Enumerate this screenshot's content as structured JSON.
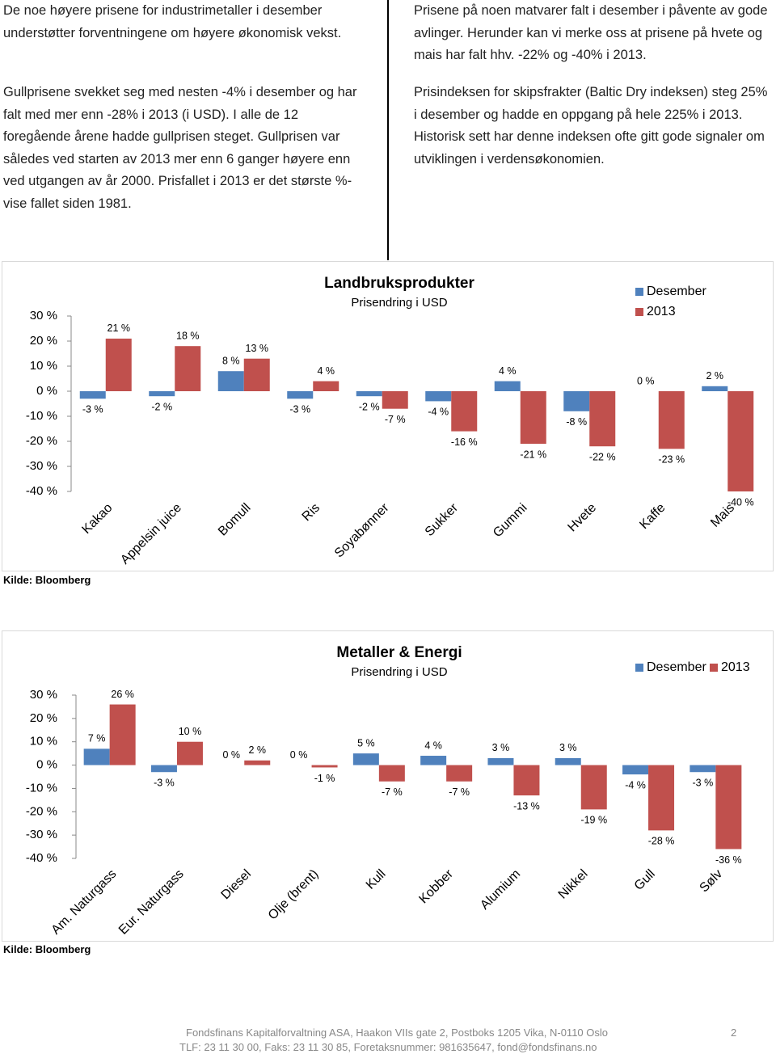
{
  "left_text": [
    "De noe høyere prisene for industrimetaller i desember understøtter forventningene om høyere økonomisk vekst.",
    "Gullprisene svekket seg med nesten -4% i desember  og har falt med mer enn -28% i 2013 (i USD). I alle de 12 foregående årene hadde gullprisen steget. Gullprisen var således ved starten av 2013 mer enn 6 ganger høyere enn ved utgangen av år 2000. Prisfallet i 2013 er det største %-vise fallet siden 1981."
  ],
  "right_text": [
    "Prisene på noen matvarer falt i desember i påvente av gode avlinger. Herunder kan vi merke oss at prisene på hvete og mais har falt hhv. -22% og -40%  i 2013.",
    "Prisindeksen for skipsfrakter (Baltic Dry indeksen) steg 25% i desember og hadde en oppgang på hele 225% i 2013. Historisk sett har denne indeksen ofte gitt gode signaler om utviklingen i verdensøkonomien."
  ],
  "chart_data": [
    {
      "type": "bar",
      "title": "Landbruksprodukter",
      "subtitle": "Prisendring i USD",
      "source": "Kilde: Bloomberg",
      "legend": "top-right",
      "legend_direction": "vertical",
      "categories": [
        "Kakao",
        "Appelsin juice",
        "Bomull",
        "Ris",
        "Soyabønner",
        "Sukker",
        "Gummi",
        "Hvete",
        "Kaffe",
        "Mais"
      ],
      "series": [
        {
          "name": "Desember",
          "color": "#4f81bd",
          "values": [
            -3,
            -2,
            8,
            -3,
            -2,
            -4,
            4,
            -8,
            0,
            2
          ],
          "value_labels": [
            "-3 %",
            "-2 %",
            "8 %",
            "-3 %",
            "-2 %",
            "-4 %",
            "4 %",
            "-8 %",
            "0 %",
            "2 %"
          ]
        },
        {
          "name": "2013",
          "color": "#c0504d",
          "values": [
            21,
            18,
            13,
            4,
            -7,
            -16,
            -21,
            -22,
            -23,
            -40
          ],
          "value_labels": [
            "21 %",
            "18 %",
            "13 %",
            "4 %",
            "-7 %",
            "-16 %",
            "-21 %",
            "-22 %",
            "-23 %",
            "-40 %"
          ]
        }
      ],
      "ylim": [
        -40,
        30
      ],
      "yticks": [
        {
          "value": -40,
          "label": "-40 %"
        },
        {
          "value": -30,
          "label": "-30 %"
        },
        {
          "value": -20,
          "label": "-20 %"
        },
        {
          "value": -10,
          "label": "-10 %"
        },
        {
          "value": 0,
          "label": "0 %"
        },
        {
          "value": 10,
          "label": "10 %"
        },
        {
          "value": 20,
          "label": "20 %"
        },
        {
          "value": 30,
          "label": "30 %"
        }
      ]
    },
    {
      "type": "bar",
      "title": "Metaller & Energi",
      "subtitle": "Prisendring i USD",
      "source": "Kilde: Bloomberg",
      "legend": "top-right",
      "legend_direction": "horizontal",
      "categories": [
        "Am. Naturgass",
        "Eur. Naturgass",
        "Diesel",
        "Olje (brent)",
        "Kull",
        "Kobber",
        "Alumium",
        "Nikkel",
        "Gull",
        "Sølv"
      ],
      "series": [
        {
          "name": "Desember",
          "color": "#4f81bd",
          "values": [
            7,
            -3,
            0,
            0,
            5,
            4,
            3,
            3,
            -4,
            -3
          ],
          "value_labels": [
            "7 %",
            "-3 %",
            "0 %",
            "0 %",
            "5 %",
            "4 %",
            "3 %",
            "3 %",
            "-4 %",
            "-3 %"
          ]
        },
        {
          "name": "2013",
          "color": "#c0504d",
          "values": [
            26,
            10,
            2,
            -1,
            -7,
            -7,
            -13,
            -19,
            -28,
            -36
          ],
          "value_labels": [
            "26 %",
            "10 %",
            "2 %",
            "-1 %",
            "-7 %",
            "-7 %",
            "-13 %",
            "-19 %",
            "-28 %",
            "-36 %"
          ]
        }
      ],
      "ylim": [
        -40,
        30
      ],
      "yticks": [
        {
          "value": -40,
          "label": "-40 %"
        },
        {
          "value": -30,
          "label": "-30 %"
        },
        {
          "value": -20,
          "label": "-20 %"
        },
        {
          "value": -10,
          "label": "-10 %"
        },
        {
          "value": 0,
          "label": "0 %"
        },
        {
          "value": 10,
          "label": "10 %"
        },
        {
          "value": 20,
          "label": "20 %"
        },
        {
          "value": 30,
          "label": "30 %"
        }
      ]
    }
  ],
  "footer": {
    "address": "Fondsfinans Kapitalforvaltning ASA, Haakon VIIs gate 2, Postboks 1205 Vika, N-0110 Oslo",
    "contact": "TLF: 23 11 30 00, Faks: 23 11 30 85, Foretaksnummer: 981635647, fond@fondsfinans.no",
    "page_number": 2
  }
}
